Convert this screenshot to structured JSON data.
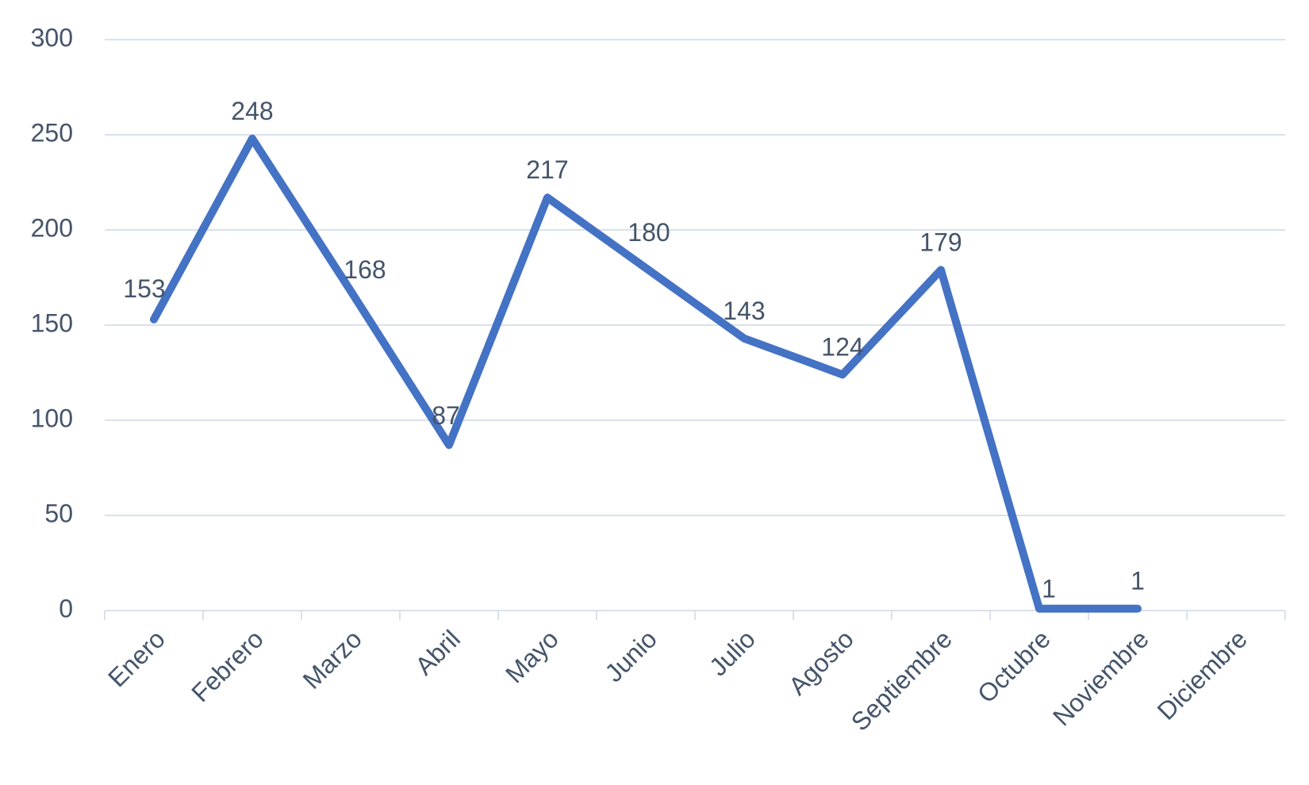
{
  "chart_data": {
    "type": "line",
    "categories": [
      "Enero",
      "Febrero",
      "Marzo",
      "Abril",
      "Mayo",
      "Junio",
      "Julio",
      "Agosto",
      "Septiembre",
      "Octubre",
      "Noviembre",
      "Diciembre"
    ],
    "series": [
      {
        "values": [
          153,
          248,
          168,
          87,
          217,
          180,
          143,
          124,
          179,
          1,
          1,
          null
        ],
        "color": "#4472c4"
      }
    ],
    "data_labels": [
      "153",
      "248",
      "168",
      "87",
      "217",
      "180",
      "143",
      "124",
      "179",
      "1",
      "1",
      ""
    ],
    "y_ticks": [
      "0",
      "50",
      "100",
      "150",
      "200",
      "250",
      "300"
    ],
    "ylim": [
      0,
      300
    ],
    "grid": true,
    "legend": "none",
    "title": "",
    "xlabel": "",
    "ylabel": ""
  }
}
